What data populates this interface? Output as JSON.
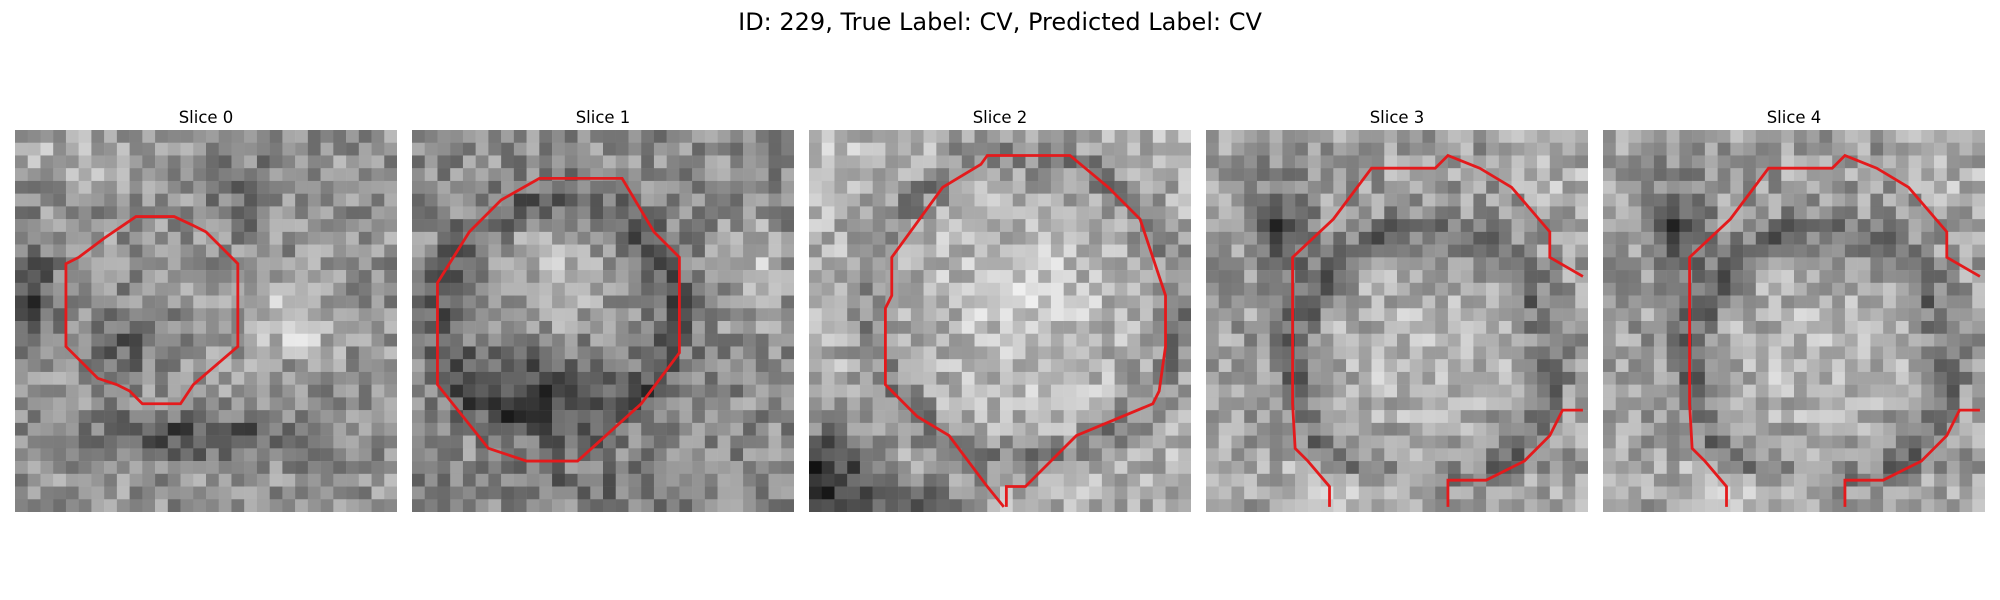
{
  "figure": {
    "suptitle": "ID: 229, True Label: CV, Predicted Label: CV",
    "contour_color": "#e41a1c"
  },
  "slices": [
    {
      "title": "Slice 0",
      "seed": 11,
      "style": "s0"
    },
    {
      "title": "Slice 1",
      "seed": 23,
      "style": "s1"
    },
    {
      "title": "Slice 2",
      "seed": 37,
      "style": "s2"
    },
    {
      "title": "Slice 3",
      "seed": 51,
      "style": "s3"
    },
    {
      "title": "Slice 4",
      "seed": 51,
      "style": "s3"
    }
  ]
}
